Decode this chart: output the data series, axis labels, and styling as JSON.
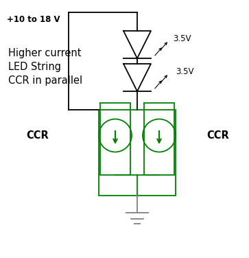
{
  "bg_color": "#ffffff",
  "line_color": "#000000",
  "green_color": "#008000",
  "gray_color": "#808080",
  "title_label": "Higher current\nLED String\nCCR in parallel",
  "voltage_label": "+10 to 18 V",
  "v35_1": "3.5V",
  "v35_2": "3.5V",
  "ccr_left": "CCR",
  "ccr_right": "CCR",
  "fig_width": 3.63,
  "fig_height": 3.76
}
